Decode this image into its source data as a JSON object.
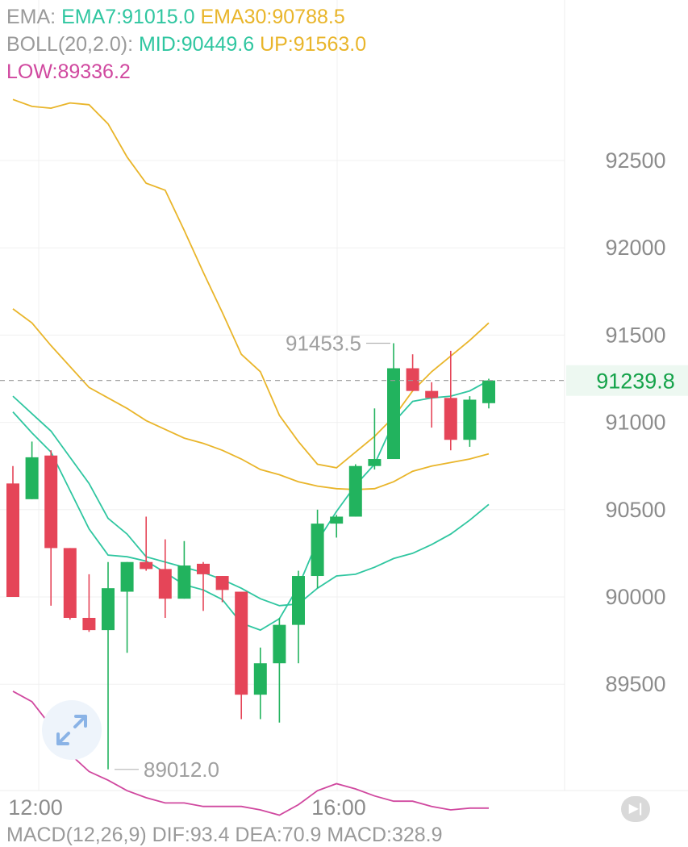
{
  "legend": {
    "ema_prefix": "EMA:",
    "ema7": "EMA7:91015.0",
    "ema30": "EMA30:90788.5",
    "boll_prefix": "BOLL(20,2.0):",
    "boll_mid": "MID:90449.6",
    "boll_up": "UP:91563.0",
    "boll_low": "LOW:89336.2"
  },
  "macd_peek": "MACD(12,26,9) DIF:93.4 DEA:70.9 MACD:328.9",
  "colors": {
    "up": "#22b35e",
    "down": "#e54558",
    "ema7": "#2fc6a0",
    "ema30": "#e9b52a",
    "boll_up": "#e9b52a",
    "boll_mid": "#2fc6a0",
    "boll_low": "#d0489f",
    "last_price": "#15a34a"
  },
  "icons": {
    "expand": "expand-icon",
    "skip_to_latest": "skip-to-latest-icon"
  },
  "chart_data": {
    "type": "candlestick",
    "y_axis": {
      "ticks": [
        92500,
        92000,
        91500,
        91000,
        90500,
        90000,
        89500
      ],
      "ylim": [
        88950,
        93250
      ]
    },
    "x_axis": {
      "tick_labels": [
        "12:00",
        "16:00"
      ]
    },
    "grid": true,
    "last_price": 91239.8,
    "annotations": {
      "high_label": "91453.5",
      "high_value": 91453.5,
      "low_label": "89012.0",
      "low_value": 89012.0
    },
    "candles": [
      {
        "o": 90650,
        "h": 90750,
        "l": 90000,
        "c": 90000
      },
      {
        "o": 90560,
        "h": 90890,
        "l": 90560,
        "c": 90800
      },
      {
        "o": 90810,
        "h": 90840,
        "l": 89950,
        "c": 90280
      },
      {
        "o": 90280,
        "h": 90280,
        "l": 89870,
        "c": 89880
      },
      {
        "o": 89880,
        "h": 90130,
        "l": 89800,
        "c": 89810
      },
      {
        "o": 89810,
        "h": 90200,
        "l": 89012,
        "c": 90050
      },
      {
        "o": 90030,
        "h": 90200,
        "l": 89680,
        "c": 90200
      },
      {
        "o": 90200,
        "h": 90460,
        "l": 90150,
        "c": 90160
      },
      {
        "o": 90160,
        "h": 90330,
        "l": 89880,
        "c": 89990
      },
      {
        "o": 89990,
        "h": 90320,
        "l": 89990,
        "c": 90180
      },
      {
        "o": 90190,
        "h": 90200,
        "l": 89920,
        "c": 90130
      },
      {
        "o": 90120,
        "h": 90120,
        "l": 89970,
        "c": 90040
      },
      {
        "o": 90030,
        "h": 90030,
        "l": 89300,
        "c": 89440
      },
      {
        "o": 89440,
        "h": 89710,
        "l": 89300,
        "c": 89620
      },
      {
        "o": 89620,
        "h": 89880,
        "l": 89280,
        "c": 89840
      },
      {
        "o": 89840,
        "h": 90150,
        "l": 89620,
        "c": 90120
      },
      {
        "o": 90120,
        "h": 90500,
        "l": 90050,
        "c": 90420
      },
      {
        "o": 90420,
        "h": 90470,
        "l": 90340,
        "c": 90460
      },
      {
        "o": 90460,
        "h": 90760,
        "l": 90460,
        "c": 90750
      },
      {
        "o": 90750,
        "h": 91080,
        "l": 90730,
        "c": 90790
      },
      {
        "o": 90790,
        "h": 91453.5,
        "l": 90790,
        "c": 91310
      },
      {
        "o": 91310,
        "h": 91390,
        "l": 91180,
        "c": 91180
      },
      {
        "o": 91180,
        "h": 91230,
        "l": 90970,
        "c": 91140
      },
      {
        "o": 91140,
        "h": 91410,
        "l": 90840,
        "c": 90900
      },
      {
        "o": 90900,
        "h": 91150,
        "l": 90860,
        "c": 91130
      },
      {
        "o": 91110,
        "h": 91250,
        "l": 91080,
        "c": 91240
      }
    ],
    "series": [
      {
        "name": "EMA7",
        "color": "#2fc6a0",
        "values": [
          91060,
          90940,
          90830,
          90610,
          90390,
          90240,
          90230,
          90205,
          90140,
          90070,
          90040,
          89985,
          89850,
          89810,
          89875,
          90060,
          90320,
          90490,
          90640,
          90760,
          91000,
          91120,
          91140,
          91150,
          91180,
          91240
        ]
      },
      {
        "name": "EMA30",
        "color": "#e9b52a",
        "values": [
          91650,
          91570,
          91440,
          91320,
          91200,
          91140,
          91080,
          91010,
          90960,
          90910,
          90880,
          90840,
          90790,
          90730,
          90700,
          90660,
          90635,
          90620,
          90615,
          90620,
          90660,
          90720,
          90750,
          90770,
          90790,
          90820
        ]
      },
      {
        "name": "UP",
        "color": "#e9b52a",
        "values": [
          92850,
          92810,
          92800,
          92830,
          92820,
          92710,
          92520,
          92370,
          92330,
          92100,
          91860,
          91630,
          91390,
          91290,
          91040,
          90890,
          90760,
          90740,
          90830,
          90920,
          91030,
          91180,
          91290,
          91380,
          91470,
          91570
        ]
      },
      {
        "name": "MID",
        "color": "#2fc6a0",
        "values": [
          91150,
          91050,
          90950,
          90800,
          90650,
          90450,
          90360,
          90230,
          90200,
          90170,
          90140,
          90100,
          90050,
          89990,
          89950,
          89960,
          90050,
          90120,
          90130,
          90170,
          90220,
          90250,
          90300,
          90360,
          90440,
          90530
        ]
      },
      {
        "name": "LOW",
        "color": "#d0489f",
        "values": [
          89460,
          89400,
          89260,
          89100,
          89000,
          88950,
          88890,
          88850,
          88820,
          88820,
          88800,
          88800,
          88800,
          88780,
          88750,
          88810,
          88890,
          88930,
          88900,
          88860,
          88830,
          88830,
          88800,
          88780,
          88790,
          88790
        ]
      }
    ]
  }
}
